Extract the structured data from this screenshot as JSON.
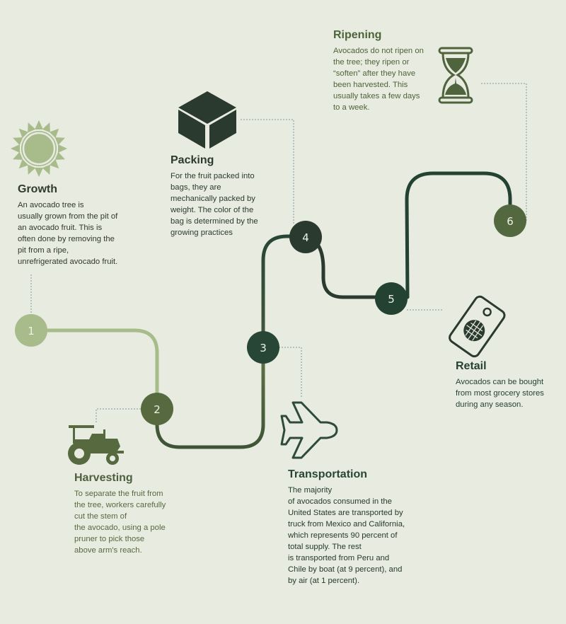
{
  "steps": [
    {
      "number": "1",
      "title": "Growth",
      "text": "An avocado tree is\nusually grown from the pit of\nan avocado fruit. This is\noften done by removing the\npit from a ripe,\nunrefrigerated avocado fruit.",
      "icon": "sun-icon"
    },
    {
      "number": "2",
      "title": "Harvesting",
      "text": "To separate the fruit from\nthe tree, workers carefully\ncut the stem of\nthe avocado, using a pole\npruner to pick those\nabove arm's reach.",
      "icon": "tractor-icon"
    },
    {
      "number": "3",
      "title": "Transportation",
      "text": "The majority\nof avocados consumed in the\nUnited States are transported by\ntruck from Mexico and California,\nwhich represents 90 percent of\ntotal supply. The rest\nis transported from Peru and\nChile by boat (at 9 percent), and\nby air (at 1 percent).",
      "icon": "airplane-icon"
    },
    {
      "number": "4",
      "title": "Packing",
      "text": "For the fruit packed into\nbags, they are\nmechanically packed by\nweight. The color of the\nbag is determined by the\ngrowing practices",
      "icon": "box-icon"
    },
    {
      "number": "5",
      "title": "Retail",
      "text": "Avocados can be bought\nfrom most grocery stores\nduring any season.",
      "icon": "price-tag-icon"
    },
    {
      "number": "6",
      "title": "Ripening",
      "text": "Avocados do not ripen on\nthe tree; they ripen or\n“soften” after they have\nbeen harvested. This\nusually takes a few days\nto a week.",
      "icon": "hourglass-icon"
    }
  ],
  "colors": {
    "background": "#e8ebe0",
    "step1": "#a7bb8b",
    "step2": "#56693f",
    "step3": "#284635",
    "step4": "#2b3a2e",
    "step5": "#234232",
    "step6": "#53683f",
    "title_growth": "#2f3b2c",
    "title_light": "#4d5f3d",
    "title_dark": "#2b3a2e",
    "connector": "#7e9aa0"
  }
}
